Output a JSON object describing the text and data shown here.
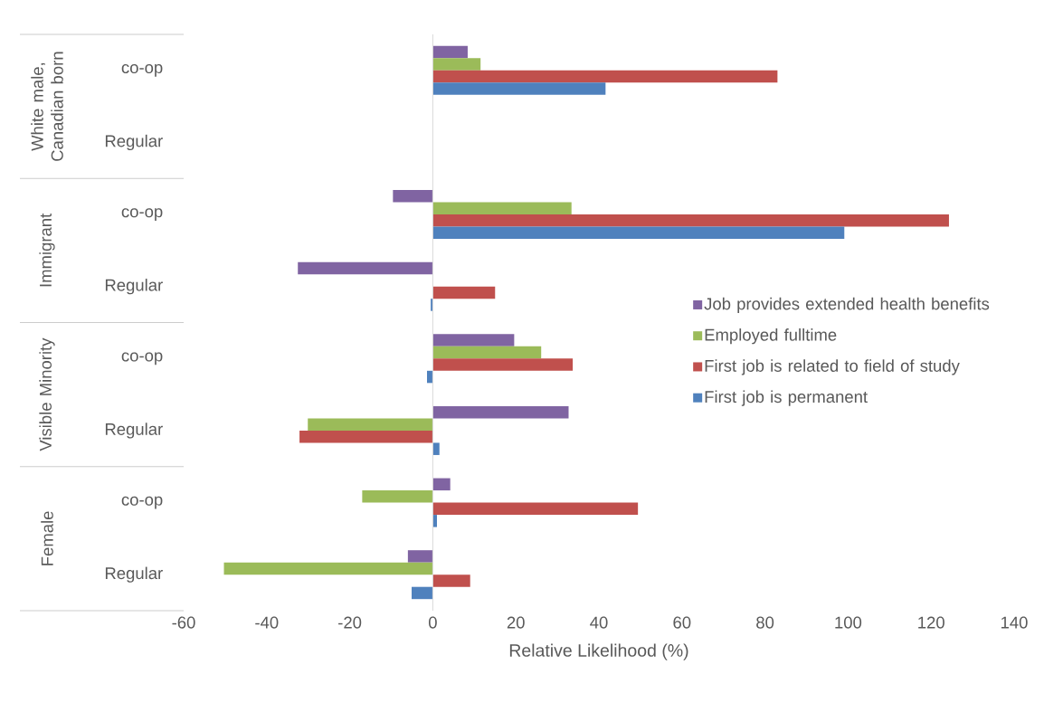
{
  "chart_data": {
    "type": "bar",
    "orientation": "horizontal",
    "xlabel": "Relative Likelihood (%)",
    "categories": [
      "co-op",
      "Regular",
      "co-op",
      "Regular",
      "co-op",
      "Regular",
      "co-op",
      "Regular"
    ],
    "series": [
      {
        "name": "Job provides extended health benefits",
        "color": "#8064a2",
        "values": [
          8.4,
          null,
          -9.6,
          -32.5,
          19.6,
          32.7,
          4.2,
          -6
        ]
      },
      {
        "name": "Employed fulltime",
        "color": "#9bbb59",
        "values": [
          11.5,
          null,
          33.4,
          null,
          26.1,
          -30.1,
          -17,
          -50.3
        ]
      },
      {
        "name": "First job is related to field of study",
        "color": "#c0504d",
        "values": [
          83,
          null,
          124.3,
          15,
          33.7,
          -32.1,
          49.4,
          9
        ]
      },
      {
        "name": "First job is permanent",
        "color": "#4f81bd",
        "values": [
          41.6,
          null,
          99.1,
          -0.5,
          -1.4,
          1.6,
          1.0,
          -5.1
        ]
      }
    ],
    "xlim": [
      -60,
      140
    ],
    "xticks": [
      -60,
      -40,
      -20,
      0,
      20,
      40,
      60,
      80,
      100,
      120,
      140
    ],
    "annotations": [
      "White male, Canadian born",
      "Immigrant",
      "Visible Minority",
      "Female"
    ],
    "ref_lines": [
      {
        "axis": "x",
        "value": 0,
        "color": "#d9d9d9"
      }
    ],
    "legend": "right"
  }
}
